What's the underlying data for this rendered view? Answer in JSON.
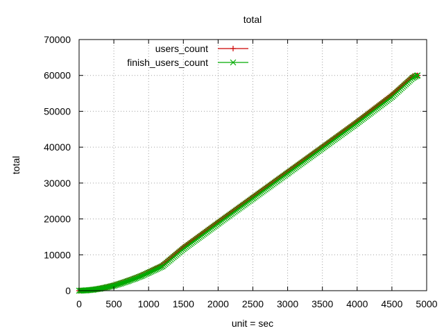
{
  "chart_data": {
    "type": "line",
    "title": "total",
    "xlabel": "unit = sec",
    "ylabel": "total",
    "xlim": [
      0,
      5000
    ],
    "ylim": [
      0,
      70000
    ],
    "x_ticks": [
      0,
      500,
      1000,
      1500,
      2000,
      2500,
      3000,
      3500,
      4000,
      4500,
      5000
    ],
    "y_ticks": [
      0,
      10000,
      20000,
      30000,
      40000,
      50000,
      60000,
      70000
    ],
    "grid": true,
    "legend_position": "top-left",
    "series": [
      {
        "name": "users_count",
        "color": "#cc0000",
        "marker": "plus",
        "x": [
          0,
          100,
          200,
          300,
          400,
          500,
          600,
          700,
          800,
          900,
          1000,
          1100,
          1200,
          1500,
          2000,
          2500,
          3000,
          3500,
          4000,
          4500,
          4800,
          4870
        ],
        "y": [
          0,
          100,
          300,
          600,
          1000,
          1500,
          2100,
          2800,
          3500,
          4300,
          5200,
          6200,
          7200,
          12200,
          19200,
          26200,
          33200,
          40200,
          47300,
          54700,
          59800,
          60000
        ]
      },
      {
        "name": "finish_users_count",
        "color": "#00aa00",
        "marker": "x",
        "x": [
          0,
          100,
          200,
          300,
          400,
          500,
          600,
          700,
          800,
          900,
          1000,
          1100,
          1200,
          1500,
          2000,
          2500,
          3000,
          3500,
          4000,
          4500,
          4800,
          4870
        ],
        "y": [
          0,
          80,
          260,
          550,
          950,
          1400,
          2000,
          2650,
          3350,
          4100,
          5000,
          5900,
          6800,
          11600,
          18700,
          25700,
          32700,
          39700,
          46700,
          54000,
          59300,
          60000
        ]
      }
    ]
  }
}
